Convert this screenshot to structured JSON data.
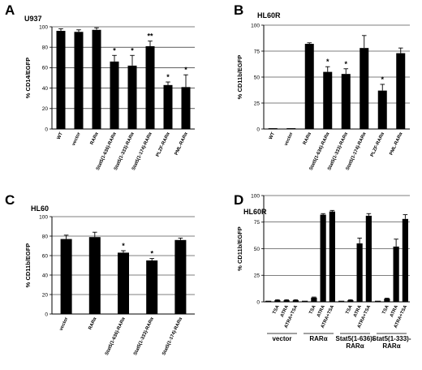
{
  "chart_data": [
    {
      "panel": "A",
      "cell_line": "U937",
      "type": "bar",
      "ylabel": "% CD14/EGFP",
      "ylim": [
        0,
        100
      ],
      "yticks": [
        "0",
        "20",
        "40",
        "60",
        "80",
        "100"
      ],
      "yticks_num": [
        0,
        20,
        40,
        60,
        80,
        100
      ],
      "grid": true,
      "categories": [
        "WT",
        "vector",
        "RARα",
        "Stat5(1-636)-RARα",
        "Stat5(1-333)-RARα",
        "Stat5(1-174)-RARα",
        "PLZF-RARα",
        "PML-RARα"
      ],
      "values": [
        96,
        95,
        97,
        66,
        62,
        81,
        43,
        41
      ],
      "errors": [
        2,
        2,
        2,
        6,
        10,
        5,
        3,
        12
      ],
      "significance": [
        "",
        "",
        "",
        "*",
        "*",
        "**",
        "*",
        "*"
      ]
    },
    {
      "panel": "B",
      "cell_line": "HL60R",
      "type": "bar",
      "ylabel": "% CD11b/EGFP",
      "ylim": [
        0,
        100
      ],
      "yticks": [
        "0",
        "25",
        "50",
        "75",
        "100"
      ],
      "yticks_num": [
        0,
        25,
        50,
        75,
        100
      ],
      "grid": true,
      "categories": [
        "WT",
        "vector",
        "RARα",
        "Stat5(1-636)-RARα",
        "Stat5(1-333)-RARα",
        "Stat5(1-174)-RARα",
        "PLZF-RARα",
        "PML-RARα"
      ],
      "values": [
        0.5,
        0.5,
        82,
        55,
        53,
        78,
        37,
        73
      ],
      "errors": [
        0,
        0,
        1,
        5,
        5,
        12,
        6,
        5
      ],
      "significance": [
        "",
        "",
        "",
        "*",
        "*",
        "",
        "*",
        ""
      ]
    },
    {
      "panel": "C",
      "cell_line": "HL60",
      "type": "bar",
      "ylabel": "% CD11b/EGFP",
      "ylim": [
        0,
        100
      ],
      "yticks": [
        "0",
        "20",
        "40",
        "60",
        "80",
        "100"
      ],
      "yticks_num": [
        0,
        20,
        40,
        60,
        80,
        100
      ],
      "grid": true,
      "categories": [
        "vector",
        "RARα",
        "Stat5(1-636)-RARα",
        "Stat5(1-333)-RARα",
        "Stat5(1-174)-RARα"
      ],
      "values": [
        77,
        79,
        63,
        55,
        76
      ],
      "errors": [
        4,
        5,
        2,
        2,
        2
      ],
      "significance": [
        "",
        "",
        "*",
        "*",
        ""
      ]
    },
    {
      "panel": "D",
      "cell_line": "HL60R",
      "type": "bar",
      "ylabel": "% CD11b/EGFP",
      "ylim": [
        0,
        100
      ],
      "yticks": [
        "0",
        "25",
        "50",
        "75",
        "100"
      ],
      "yticks_num": [
        0,
        25,
        50,
        75,
        100
      ],
      "grid": true,
      "categories": [
        "",
        "TSA",
        "ATRA",
        "ATRA+TSA",
        "",
        "TSA",
        "ATRA",
        "ATRA+TSA",
        "",
        "TSA",
        "ATRA",
        "ATRA+TSA",
        "",
        "TSA",
        "ATRA",
        "ATRA+TSA"
      ],
      "values": [
        1,
        1.5,
        1.5,
        1.5,
        1,
        4,
        82,
        85,
        1,
        1.5,
        55,
        81,
        1,
        3,
        52,
        78
      ],
      "errors": [
        0,
        0.5,
        0.5,
        0.5,
        0,
        0.5,
        1,
        1,
        0,
        0.5,
        5,
        2,
        0,
        0.5,
        7,
        4
      ],
      "groups": [
        "vector",
        "RARα",
        "Stat5(1-636)-\nRARα",
        "Stat5(1-333)-\nRARα"
      ],
      "significance": []
    }
  ]
}
